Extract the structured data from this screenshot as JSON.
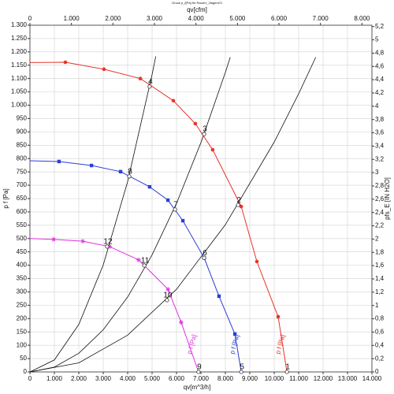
{
  "chart_data": {
    "type": "line",
    "title": "Druck p_f[Pa] für Raum1_2lagenV3",
    "x_label": "qv[m^3/h]",
    "y_label": "p f [Pa]",
    "x2_label": "qv[cfm]",
    "y2_label": "pfs_E [IN H2O]",
    "xlim": [
      0,
      14000
    ],
    "ylim": [
      0,
      1300
    ],
    "x2lim": [
      0,
      8240
    ],
    "y2lim": [
      0,
      5.22
    ],
    "grid": true,
    "xticks": [
      0,
      {
        "value": 1000,
        "label": "1.000"
      },
      {
        "value": 2000,
        "label": "2.000"
      },
      {
        "value": 3000,
        "label": "3.000"
      },
      {
        "value": 4000,
        "label": "4.000"
      },
      {
        "value": 5000,
        "label": "5.000"
      },
      {
        "value": 6000,
        "label": "6.000"
      },
      {
        "value": 7000,
        "label": "7.000"
      },
      {
        "value": 8000,
        "label": "8.000"
      },
      {
        "value": 9000,
        "label": "9.000"
      },
      {
        "value": 10000,
        "label": "10.000"
      },
      {
        "value": 11000,
        "label": "11.000"
      },
      {
        "value": 12000,
        "label": "12.000"
      },
      {
        "value": 13000,
        "label": "13.000"
      },
      {
        "value": 14000,
        "label": "14.000"
      }
    ],
    "x2ticks": [
      0,
      {
        "value": 1000,
        "label": "1.000"
      },
      {
        "value": 2000,
        "label": "2.000"
      },
      {
        "value": 3000,
        "label": "3.000"
      },
      {
        "value": 4000,
        "label": "4.000"
      },
      {
        "value": 5000,
        "label": "5.000"
      },
      {
        "value": 6000,
        "label": "6.000"
      },
      {
        "value": 7000,
        "label": "7.000"
      },
      {
        "value": 8000,
        "label": "8.000"
      }
    ],
    "yticks": [
      0,
      50,
      100,
      150,
      200,
      250,
      300,
      350,
      400,
      450,
      500,
      550,
      600,
      650,
      700,
      750,
      800,
      850,
      900,
      950,
      {
        "value": 1000,
        "label": "1.000"
      },
      {
        "value": 1050,
        "label": "1.050"
      },
      {
        "value": 1100,
        "label": "1.100"
      },
      {
        "value": 1150,
        "label": "1.150"
      },
      {
        "value": 1200,
        "label": "1.200"
      },
      {
        "value": 1250,
        "label": "1.250"
      },
      {
        "value": 1300,
        "label": "1.300"
      }
    ],
    "y2ticks": [
      0,
      {
        "value": 0.2,
        "label": "0,2"
      },
      {
        "value": 0.4,
        "label": "0,4"
      },
      {
        "value": 0.6,
        "label": "0,6"
      },
      {
        "value": 0.8,
        "label": "0,8"
      },
      1,
      {
        "value": 1.2,
        "label": "1,2"
      },
      {
        "value": 1.4,
        "label": "1,4"
      },
      {
        "value": 1.6,
        "label": "1,6"
      },
      {
        "value": 1.8,
        "label": "1,8"
      },
      2,
      {
        "value": 2.2,
        "label": "2,2"
      },
      {
        "value": 2.4,
        "label": "2,4"
      },
      {
        "value": 2.6,
        "label": "2,6"
      },
      {
        "value": 2.8,
        "label": "2,8"
      },
      3,
      {
        "value": 3.2,
        "label": "3,2"
      },
      {
        "value": 3.4,
        "label": "3,4"
      },
      {
        "value": 3.6,
        "label": "3,6"
      },
      {
        "value": 3.8,
        "label": "3,8"
      },
      4,
      {
        "value": 4.2,
        "label": "4,2"
      },
      {
        "value": 4.4,
        "label": "4,4"
      },
      {
        "value": 4.6,
        "label": "4,6"
      },
      {
        "value": 4.8,
        "label": "4,8"
      },
      5,
      {
        "value": 5.2,
        "label": "5,2"
      }
    ],
    "series": [
      {
        "name": "p f [Pa]",
        "color": "#e8332a",
        "marker": "circle",
        "x": [
          0,
          1450,
          3030,
          4520,
          5870,
          6770,
          7480,
          8650,
          9290,
          10160,
          10520
        ],
        "values": [
          1160,
          1161,
          1135,
          1100,
          1017,
          931,
          833,
          620,
          414,
          207,
          0
        ]
      },
      {
        "name": "p f [Pa]",
        "color": "#2a3fd6",
        "marker": "square",
        "x": [
          0,
          1190,
          2520,
          3710,
          4900,
          5650,
          6260,
          7130,
          7740,
          8390,
          8650
        ],
        "values": [
          792,
          789,
          774,
          751,
          694,
          644,
          567,
          428,
          284,
          142,
          0
        ]
      },
      {
        "name": "p f [Pa]",
        "color": "#e030e0",
        "marker": "star",
        "x": [
          0,
          970,
          2160,
          3260,
          4450,
          5650,
          6190,
          6900
        ],
        "values": [
          500,
          497,
          490,
          470,
          420,
          310,
          186,
          0
        ]
      }
    ],
    "system_curves": [
      {
        "color": "#111111",
        "x": [
          0,
          1000,
          2000,
          3000,
          4000,
          5000,
          5150
        ],
        "values": [
          0,
          45,
          178,
          401,
          714,
          1115,
          1183
        ]
      },
      {
        "color": "#111111",
        "x": [
          0,
          1000,
          2000,
          3000,
          4000,
          5000,
          6000,
          7000,
          8000,
          8200
        ],
        "values": [
          0,
          18,
          70,
          158,
          281,
          439,
          632,
          860,
          1123,
          1180
        ]
      },
      {
        "color": "#111111",
        "x": [
          0,
          2000,
          4000,
          6000,
          8000,
          10000,
          11000,
          11700
        ],
        "values": [
          0,
          34,
          138,
          310,
          552,
          862,
          1043,
          1180
        ]
      }
    ],
    "points": [
      {
        "label": "4",
        "x": 4900,
        "y": 1070
      },
      {
        "label": "3",
        "x": 7130,
        "y": 892
      },
      {
        "label": "2",
        "x": 8520,
        "y": 626
      },
      {
        "label": "1",
        "x": 10520,
        "y": 0
      },
      {
        "label": "8",
        "x": 4065,
        "y": 733
      },
      {
        "label": "7",
        "x": 5940,
        "y": 609
      },
      {
        "label": "6",
        "x": 7130,
        "y": 428
      },
      {
        "label": "5",
        "x": 8650,
        "y": 0
      },
      {
        "label": "12",
        "x": 3160,
        "y": 470
      },
      {
        "label": "11",
        "x": 4680,
        "y": 399
      },
      {
        "label": "10",
        "x": 5610,
        "y": 269
      },
      {
        "label": "9",
        "x": 6900,
        "y": 0
      }
    ]
  }
}
